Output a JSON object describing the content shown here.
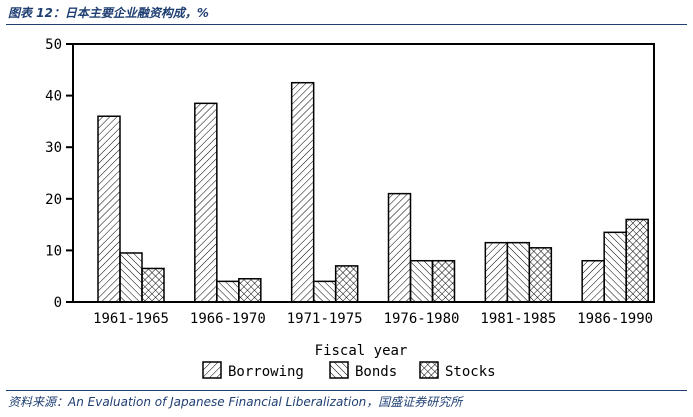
{
  "caption": "图表 12：日本主要企业融资构成，%",
  "source": "资料来源：An Evaluation of Japanese Financial Liberalization，国盛证券研究所",
  "chart_data": {
    "type": "bar",
    "title": "",
    "xlabel": "Fiscal year",
    "ylabel": "",
    "ylim": [
      0,
      50
    ],
    "yticks": [
      0,
      10,
      20,
      30,
      40,
      50
    ],
    "grid": false,
    "legend_position": "bottom",
    "categories": [
      "1961-1965",
      "1966-1970",
      "1971-1975",
      "1976-1980",
      "1981-1985",
      "1986-1990"
    ],
    "series": [
      {
        "name": "Borrowing",
        "pattern": "diagonal-hatch",
        "values": [
          36,
          38.5,
          42.5,
          21,
          11.5,
          8
        ]
      },
      {
        "name": "Bonds",
        "pattern": "reverse-diagonal-hatch",
        "values": [
          9.5,
          4,
          4,
          8,
          11.5,
          13.5
        ]
      },
      {
        "name": "Stocks",
        "pattern": "cross-hatch",
        "values": [
          6.5,
          4.5,
          7,
          8,
          10.5,
          16
        ]
      }
    ]
  },
  "colors": {
    "caption": "#1f3f73",
    "ink": "#000000"
  }
}
